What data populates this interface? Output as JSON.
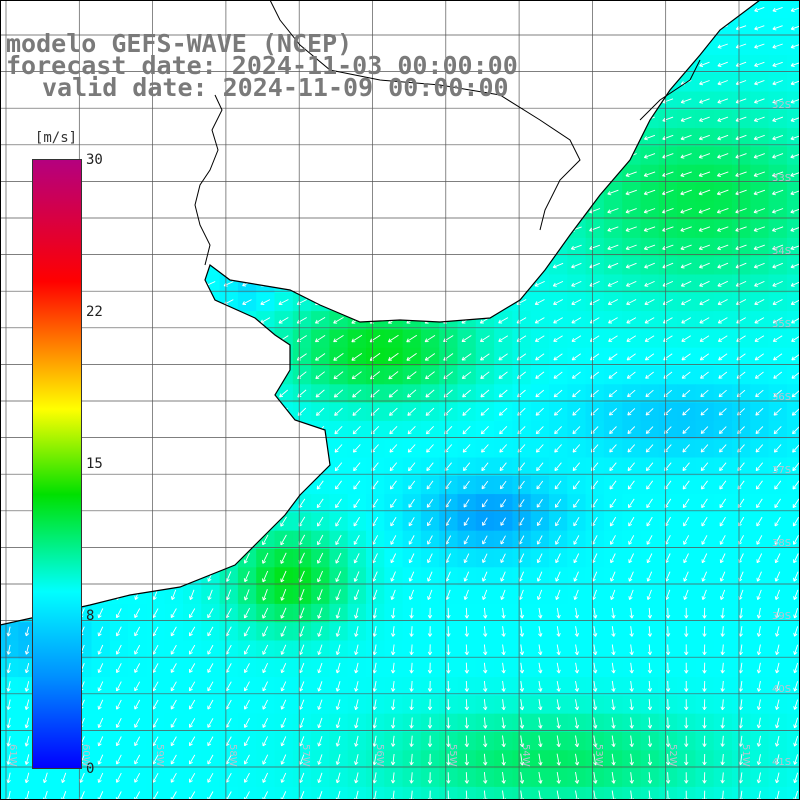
{
  "title": {
    "line1": "modelo GEFS-WAVE (NCEP)",
    "line2": "forecast date: 2024-11-03 00:00:00",
    "line3": "valid date: 2024-11-09 00:00:00"
  },
  "colorbar": {
    "unit": "[m/s]",
    "min": 0,
    "max": 30,
    "ticks": [
      "30",
      "22",
      "15",
      "8",
      "0"
    ],
    "colors": [
      "#b4007f",
      "#ff0000",
      "#ff7a00",
      "#ffff00",
      "#00e000",
      "#00ffff",
      "#0090ff",
      "#0000ff"
    ]
  },
  "lat_labels": [
    "32S",
    "33S",
    "34S",
    "35S",
    "36S",
    "37S",
    "38S",
    "39S",
    "40S",
    "41S"
  ],
  "lon_labels": [
    "61W",
    "60W",
    "59W",
    "58W",
    "57W",
    "56W",
    "55W",
    "54W",
    "53W",
    "52W",
    "51W"
  ],
  "colors": {
    "land": "#ffffff",
    "grid": "#555555",
    "coast": "#000000",
    "arrow": "#ffffff"
  },
  "wind": {
    "field": "10 m wind speed",
    "direction": "mostly southwest-ward in north, south-ward in south",
    "max_region": "green band near 8-14 m/s along coast",
    "min_region": "blue core ~5-6 m/s near center-east"
  }
}
